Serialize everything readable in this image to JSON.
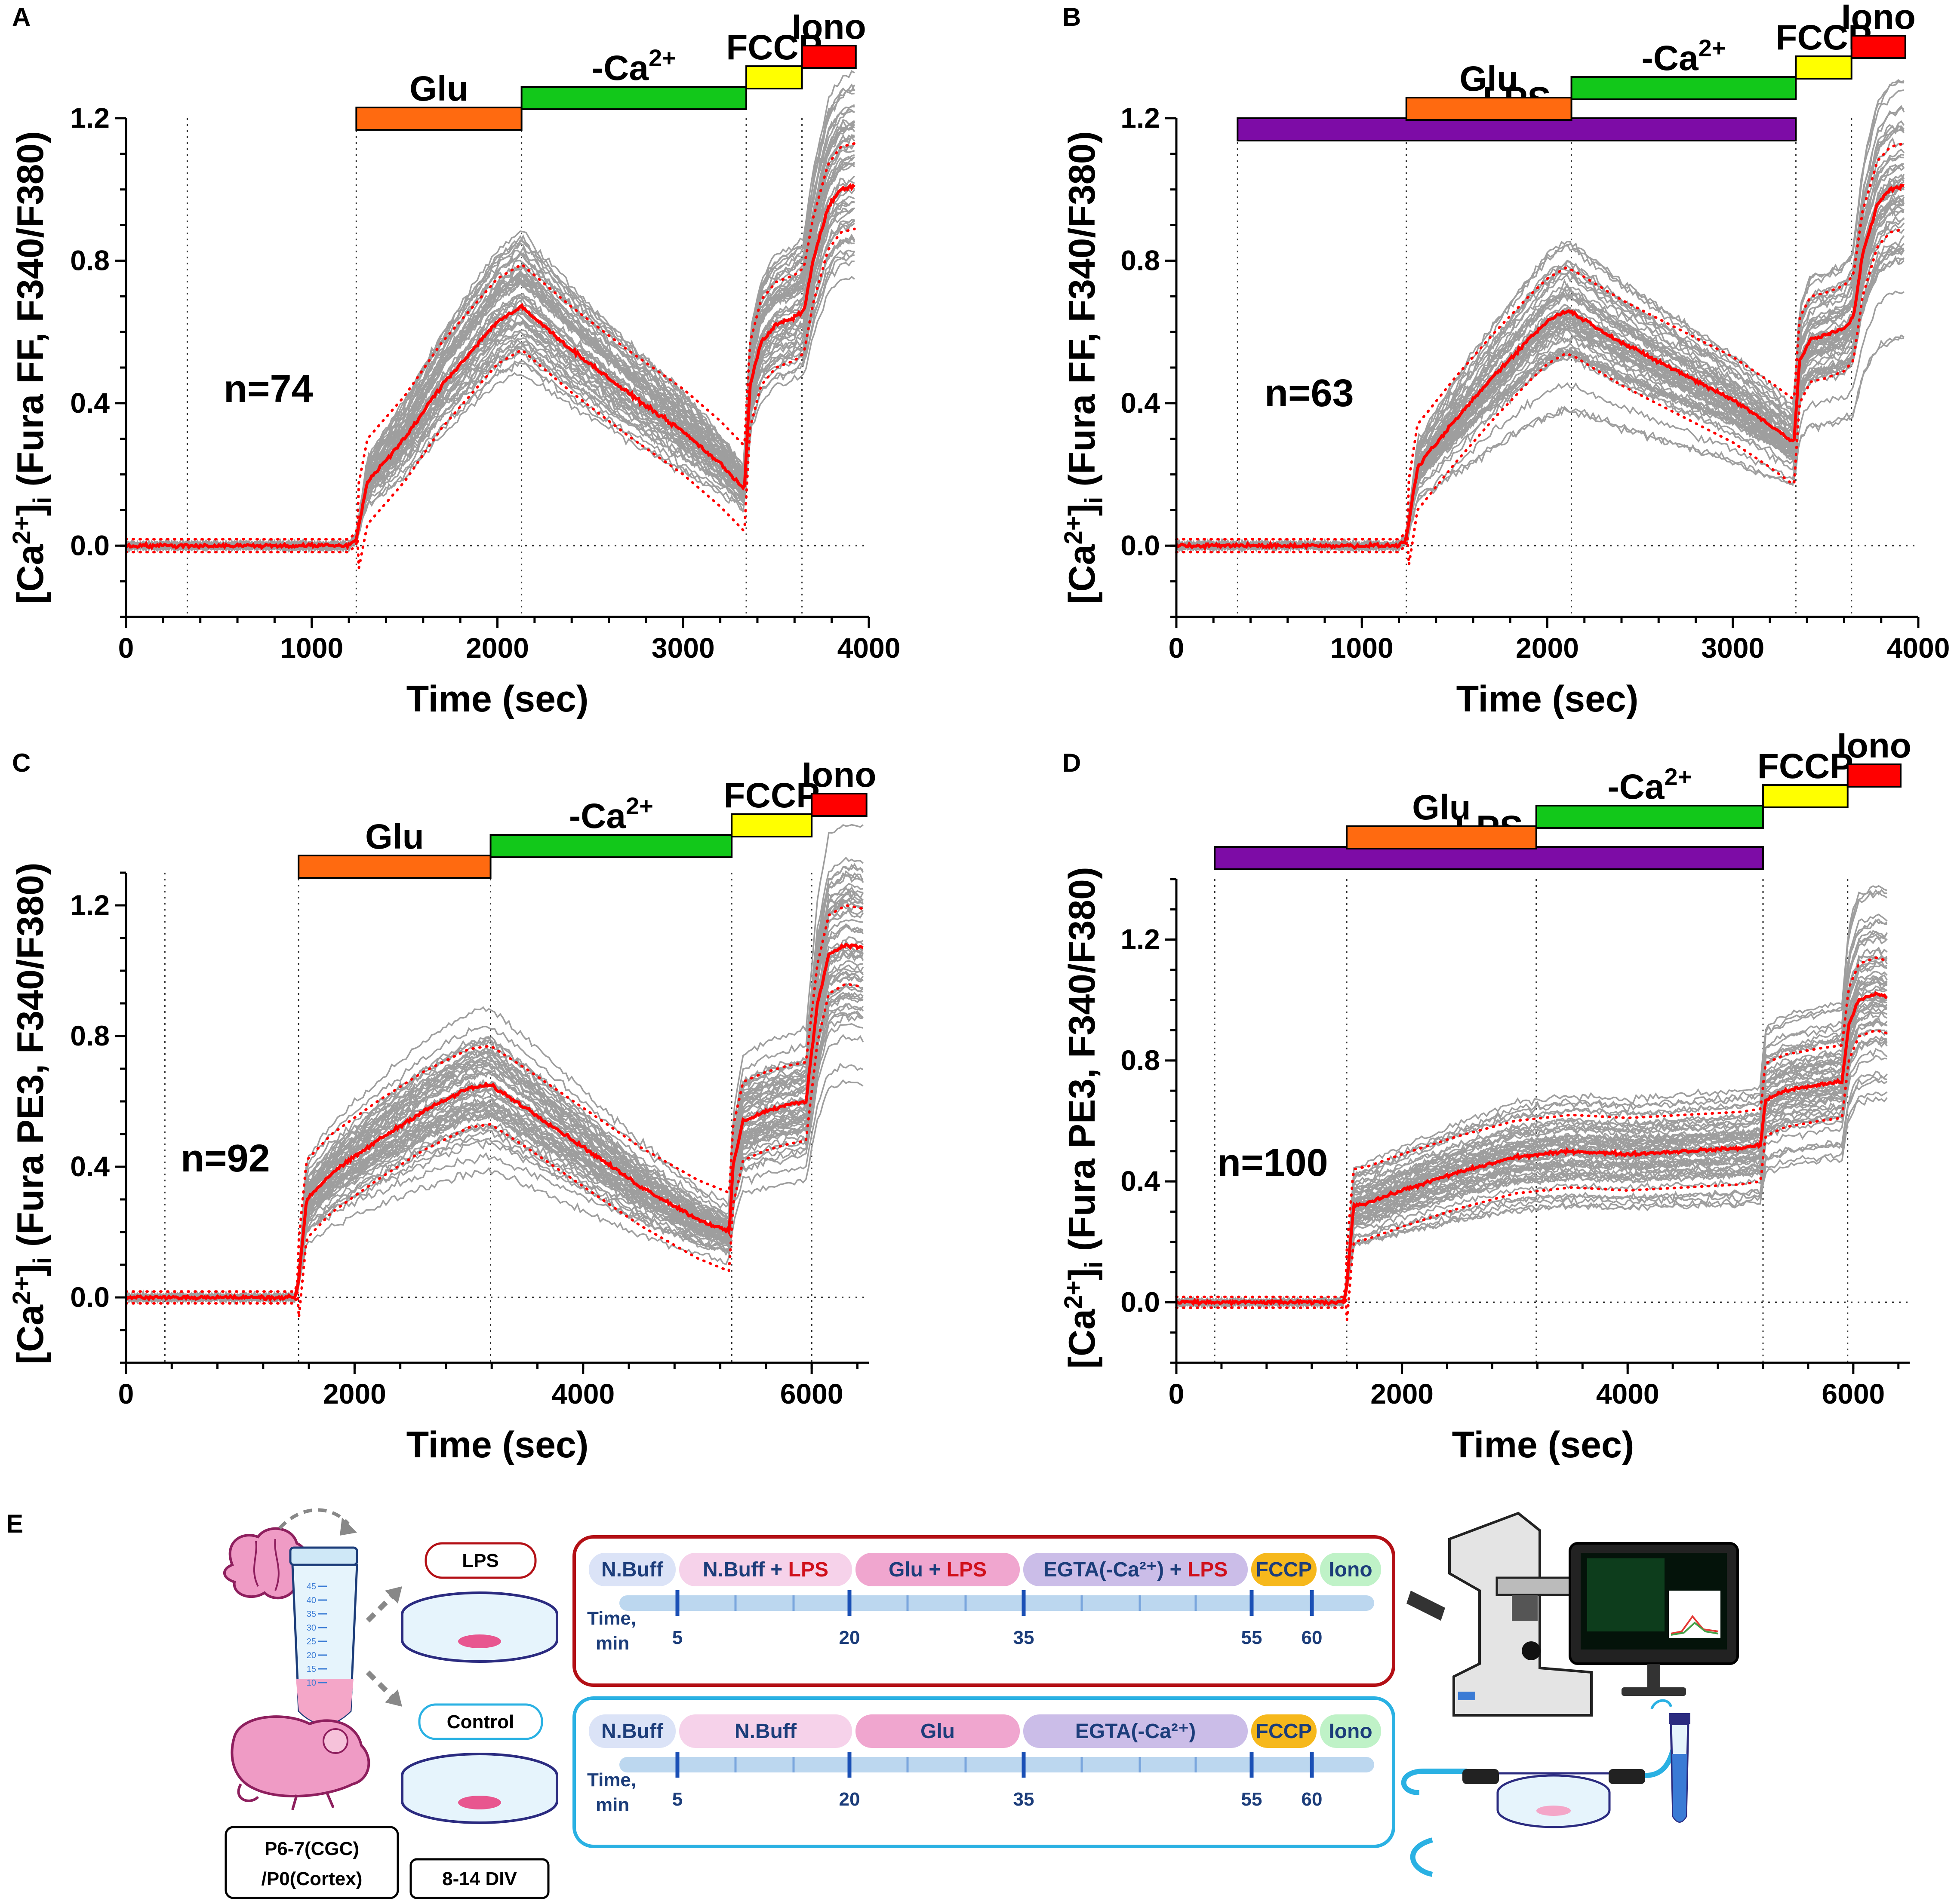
{
  "chart_data": [
    {
      "panel": "A",
      "type": "line",
      "xlabel": "Time (sec)",
      "ylabel": "[Ca2+]i (Fura FF, F340/F380)",
      "ylabel_parts": {
        "pre": "[Ca",
        "sup": "2+",
        "mid": "]",
        "sub": "i",
        "post": " (Fura FF, F340/F380)"
      },
      "xlim": [
        0,
        4000
      ],
      "ylim": [
        -0.2,
        1.2
      ],
      "xticks": [
        0,
        1000,
        2000,
        3000,
        4000
      ],
      "xtick_labels": [
        "0",
        "1000",
        "2000",
        "3000",
        "4000"
      ],
      "yticks": [
        0.0,
        0.4,
        0.8,
        1.2
      ],
      "ytick_labels": [
        "0.0",
        "0.4",
        "0.8",
        "1.2"
      ],
      "n_label": "n=74",
      "n_cells": 74,
      "vlines": [
        330,
        1240,
        2130,
        3340,
        3640
      ],
      "treatments": [
        {
          "label": "Glu",
          "sup": "",
          "start": 1240,
          "end": 2130,
          "color": "#ff6a10",
          "level": 0
        },
        {
          "label": "-Ca",
          "sup": "2+",
          "start": 2130,
          "end": 3340,
          "color": "#12c81a",
          "level": 1
        },
        {
          "label": "FCCP",
          "sup": "",
          "start": 3340,
          "end": 3640,
          "color": "#ffff00",
          "level": 2
        },
        {
          "label": "Iono",
          "sup": "",
          "start": 3640,
          "end": 3930,
          "color": "#ff0000",
          "level": 3
        }
      ],
      "mean": {
        "x": [
          0,
          1200,
          1240,
          1300,
          1500,
          1700,
          1900,
          2000,
          2100,
          2130,
          2400,
          2700,
          3000,
          3200,
          3330,
          3360,
          3420,
          3500,
          3600,
          3650,
          3700,
          3780,
          3850,
          3930
        ],
        "y": [
          0,
          0,
          0.02,
          0.18,
          0.3,
          0.45,
          0.57,
          0.63,
          0.66,
          0.67,
          0.55,
          0.43,
          0.32,
          0.23,
          0.16,
          0.45,
          0.57,
          0.62,
          0.64,
          0.66,
          0.8,
          0.95,
          1.0,
          1.01
        ]
      },
      "sd": 0.12
    },
    {
      "panel": "B",
      "type": "line",
      "xlabel": "Time (sec)",
      "ylabel": "[Ca2+]i (Fura FF, F340/F380)",
      "ylabel_parts": {
        "pre": "[Ca",
        "sup": "2+",
        "mid": "]",
        "sub": "i",
        "post": " (Fura FF, F340/F380)"
      },
      "xlim": [
        0,
        4000
      ],
      "ylim": [
        -0.2,
        1.2
      ],
      "xticks": [
        0,
        1000,
        2000,
        3000,
        4000
      ],
      "xtick_labels": [
        "0",
        "1000",
        "2000",
        "3000",
        "4000"
      ],
      "yticks": [
        0.0,
        0.4,
        0.8,
        1.2
      ],
      "ytick_labels": [
        "0.0",
        "0.4",
        "0.8",
        "1.2"
      ],
      "n_label": "n=63",
      "n_cells": 63,
      "vlines": [
        330,
        1240,
        2130,
        3340,
        3640
      ],
      "treatments": [
        {
          "label": "LPS",
          "sup": "",
          "start": 330,
          "end": 3340,
          "color": "#7d0ca6",
          "level": 0
        },
        {
          "label": "Glu",
          "sup": "",
          "start": 1240,
          "end": 2130,
          "color": "#ff6a10",
          "level": 1
        },
        {
          "label": "-Ca",
          "sup": "2+",
          "start": 2130,
          "end": 3340,
          "color": "#12c81a",
          "level": 2
        },
        {
          "label": "FCCP",
          "sup": "",
          "start": 3340,
          "end": 3640,
          "color": "#ffff00",
          "level": 3
        },
        {
          "label": "Iono",
          "sup": "",
          "start": 3640,
          "end": 3930,
          "color": "#ff0000",
          "level": 4
        }
      ],
      "mean": {
        "x": [
          0,
          1200,
          1240,
          1300,
          1500,
          1700,
          1900,
          2000,
          2100,
          2150,
          2400,
          2700,
          3000,
          3200,
          3330,
          3360,
          3420,
          3500,
          3600,
          3650,
          3700,
          3780,
          3850,
          3930
        ],
        "y": [
          0,
          0,
          0.02,
          0.22,
          0.35,
          0.47,
          0.58,
          0.63,
          0.66,
          0.65,
          0.57,
          0.49,
          0.41,
          0.34,
          0.29,
          0.52,
          0.58,
          0.59,
          0.61,
          0.64,
          0.82,
          0.96,
          1.0,
          1.01
        ]
      },
      "sd": 0.12
    },
    {
      "panel": "C",
      "type": "line",
      "xlabel": "Time (sec)",
      "ylabel": "[Ca2+]i (Fura PE3, F340/F380)",
      "ylabel_parts": {
        "pre": "[Ca",
        "sup": "2+",
        "mid": "]",
        "sub": "i",
        "post": " (Fura PE3, F340/F380)"
      },
      "xlim": [
        0,
        6500
      ],
      "ylim": [
        -0.2,
        1.3
      ],
      "xticks": [
        0,
        2000,
        4000,
        6000
      ],
      "xtick_labels": [
        "0",
        "2000",
        "4000",
        "6000"
      ],
      "yticks": [
        0.0,
        0.4,
        0.8,
        1.2
      ],
      "ytick_labels": [
        "0.0",
        "0.4",
        "0.8",
        "1.2"
      ],
      "n_label": "n=92",
      "n_cells": 92,
      "vlines": [
        340,
        1510,
        3190,
        5300,
        6000
      ],
      "treatments": [
        {
          "label": "Glu",
          "sup": "",
          "start": 1510,
          "end": 3190,
          "color": "#ff6a10",
          "level": 0
        },
        {
          "label": "-Ca",
          "sup": "2+",
          "start": 3190,
          "end": 5300,
          "color": "#12c81a",
          "level": 1
        },
        {
          "label": "FCCP",
          "sup": "",
          "start": 5300,
          "end": 6000,
          "color": "#ffff00",
          "level": 2
        },
        {
          "label": "Iono",
          "sup": "",
          "start": 6000,
          "end": 6480,
          "color": "#ff0000",
          "level": 3
        }
      ],
      "mean": {
        "x": [
          0,
          1480,
          1510,
          1580,
          1800,
          2200,
          2600,
          3000,
          3190,
          3500,
          4000,
          4500,
          5000,
          5280,
          5310,
          5400,
          5600,
          5800,
          5950,
          6050,
          6150,
          6300,
          6450
        ],
        "y": [
          0,
          0,
          0.05,
          0.3,
          0.38,
          0.48,
          0.57,
          0.64,
          0.65,
          0.58,
          0.46,
          0.34,
          0.24,
          0.2,
          0.4,
          0.54,
          0.57,
          0.59,
          0.6,
          0.9,
          1.05,
          1.08,
          1.07
        ]
      },
      "sd": 0.12
    },
    {
      "panel": "D",
      "type": "line",
      "xlabel": "Time (sec)",
      "ylabel": "[Ca2+]i (Fura PE3, F340/F380)",
      "ylabel_parts": {
        "pre": "[Ca",
        "sup": "2+",
        "mid": "]",
        "sub": "i",
        "post": " (Fura PE3, F340/F380)"
      },
      "xlim": [
        0,
        6500
      ],
      "ylim": [
        -0.2,
        1.4
      ],
      "xticks": [
        0,
        2000,
        4000,
        6000
      ],
      "xtick_labels": [
        "0",
        "2000",
        "4000",
        "6000"
      ],
      "yticks": [
        0.0,
        0.4,
        0.8,
        1.2
      ],
      "ytick_labels": [
        "0.0",
        "0.4",
        "0.8",
        "1.2"
      ],
      "n_label": "n=100",
      "n_cells": 100,
      "vlines": [
        340,
        1510,
        3190,
        5200,
        5950
      ],
      "treatments": [
        {
          "label": "LPS",
          "sup": "",
          "start": 340,
          "end": 5200,
          "color": "#7d0ca6",
          "level": 0
        },
        {
          "label": "Glu",
          "sup": "",
          "start": 1510,
          "end": 3190,
          "color": "#ff6a10",
          "level": 1
        },
        {
          "label": "-Ca",
          "sup": "2+",
          "start": 3190,
          "end": 5200,
          "color": "#12c81a",
          "level": 2
        },
        {
          "label": "FCCP",
          "sup": "",
          "start": 5200,
          "end": 5950,
          "color": "#ffff00",
          "level": 3
        },
        {
          "label": "Iono",
          "sup": "",
          "start": 5950,
          "end": 6420,
          "color": "#ff0000",
          "level": 4
        }
      ],
      "mean": {
        "x": [
          0,
          1480,
          1510,
          1570,
          1700,
          2000,
          2500,
          3000,
          3500,
          4000,
          4500,
          5000,
          5180,
          5220,
          5400,
          5700,
          5900,
          5960,
          6050,
          6200,
          6300
        ],
        "y": [
          0,
          0,
          0.05,
          0.32,
          0.33,
          0.37,
          0.43,
          0.48,
          0.5,
          0.49,
          0.5,
          0.51,
          0.52,
          0.67,
          0.7,
          0.72,
          0.73,
          0.92,
          1.0,
          1.02,
          1.01
        ]
      },
      "sd": 0.12
    }
  ],
  "schematic": {
    "panel_label": "E",
    "lps_label": "LPS",
    "control_label": "Control",
    "age_box": [
      "P6-7(CGC)",
      "/P0(Cortex)"
    ],
    "div_box": "8-14 DIV",
    "time_label": [
      "Time,",
      "min"
    ],
    "tick_labels": [
      "5",
      "20",
      "35",
      "55",
      "60"
    ],
    "lps_row": {
      "border_color": "#b30f15",
      "segments": [
        {
          "parts": [
            [
              "N.Buff",
              "#1c3d7a"
            ]
          ],
          "fill": "#dbe3f7"
        },
        {
          "parts": [
            [
              "N.Buff + ",
              "#1c3d7a"
            ],
            [
              "LPS",
              "#d0101b"
            ]
          ],
          "fill": "#f6d2ea"
        },
        {
          "parts": [
            [
              "Glu + ",
              "#1c3d7a"
            ],
            [
              "LPS",
              "#d0101b"
            ]
          ],
          "fill": "#f0a6cf"
        },
        {
          "parts": [
            [
              "EGTA(-Ca²⁺) + ",
              "#1c3d7a"
            ],
            [
              "LPS",
              "#d0101b"
            ]
          ],
          "fill": "#cbbde8"
        },
        {
          "parts": [
            [
              "FCCP",
              "#1c3d7a"
            ]
          ],
          "fill": "#f6b81c"
        },
        {
          "parts": [
            [
              "Iono",
              "#1c3d7a"
            ]
          ],
          "fill": "#bff2c7"
        }
      ]
    },
    "control_row": {
      "border_color": "#2ab1e3",
      "segments": [
        {
          "parts": [
            [
              "N.Buff",
              "#1c3d7a"
            ]
          ],
          "fill": "#dbe3f7"
        },
        {
          "parts": [
            [
              "N.Buff",
              "#1c3d7a"
            ]
          ],
          "fill": "#f6d2ea"
        },
        {
          "parts": [
            [
              "Glu",
              "#1c3d7a"
            ]
          ],
          "fill": "#f0a6cf"
        },
        {
          "parts": [
            [
              "EGTA(-Ca²⁺)",
              "#1c3d7a"
            ]
          ],
          "fill": "#cbbde8"
        },
        {
          "parts": [
            [
              "FCCP",
              "#1c3d7a"
            ]
          ],
          "fill": "#f6b81c"
        },
        {
          "parts": [
            [
              "Iono",
              "#1c3d7a"
            ]
          ],
          "fill": "#bff2c7"
        }
      ]
    },
    "tube_scale": [
      "45",
      "40",
      "35",
      "30",
      "25",
      "20",
      "15",
      "10"
    ]
  }
}
